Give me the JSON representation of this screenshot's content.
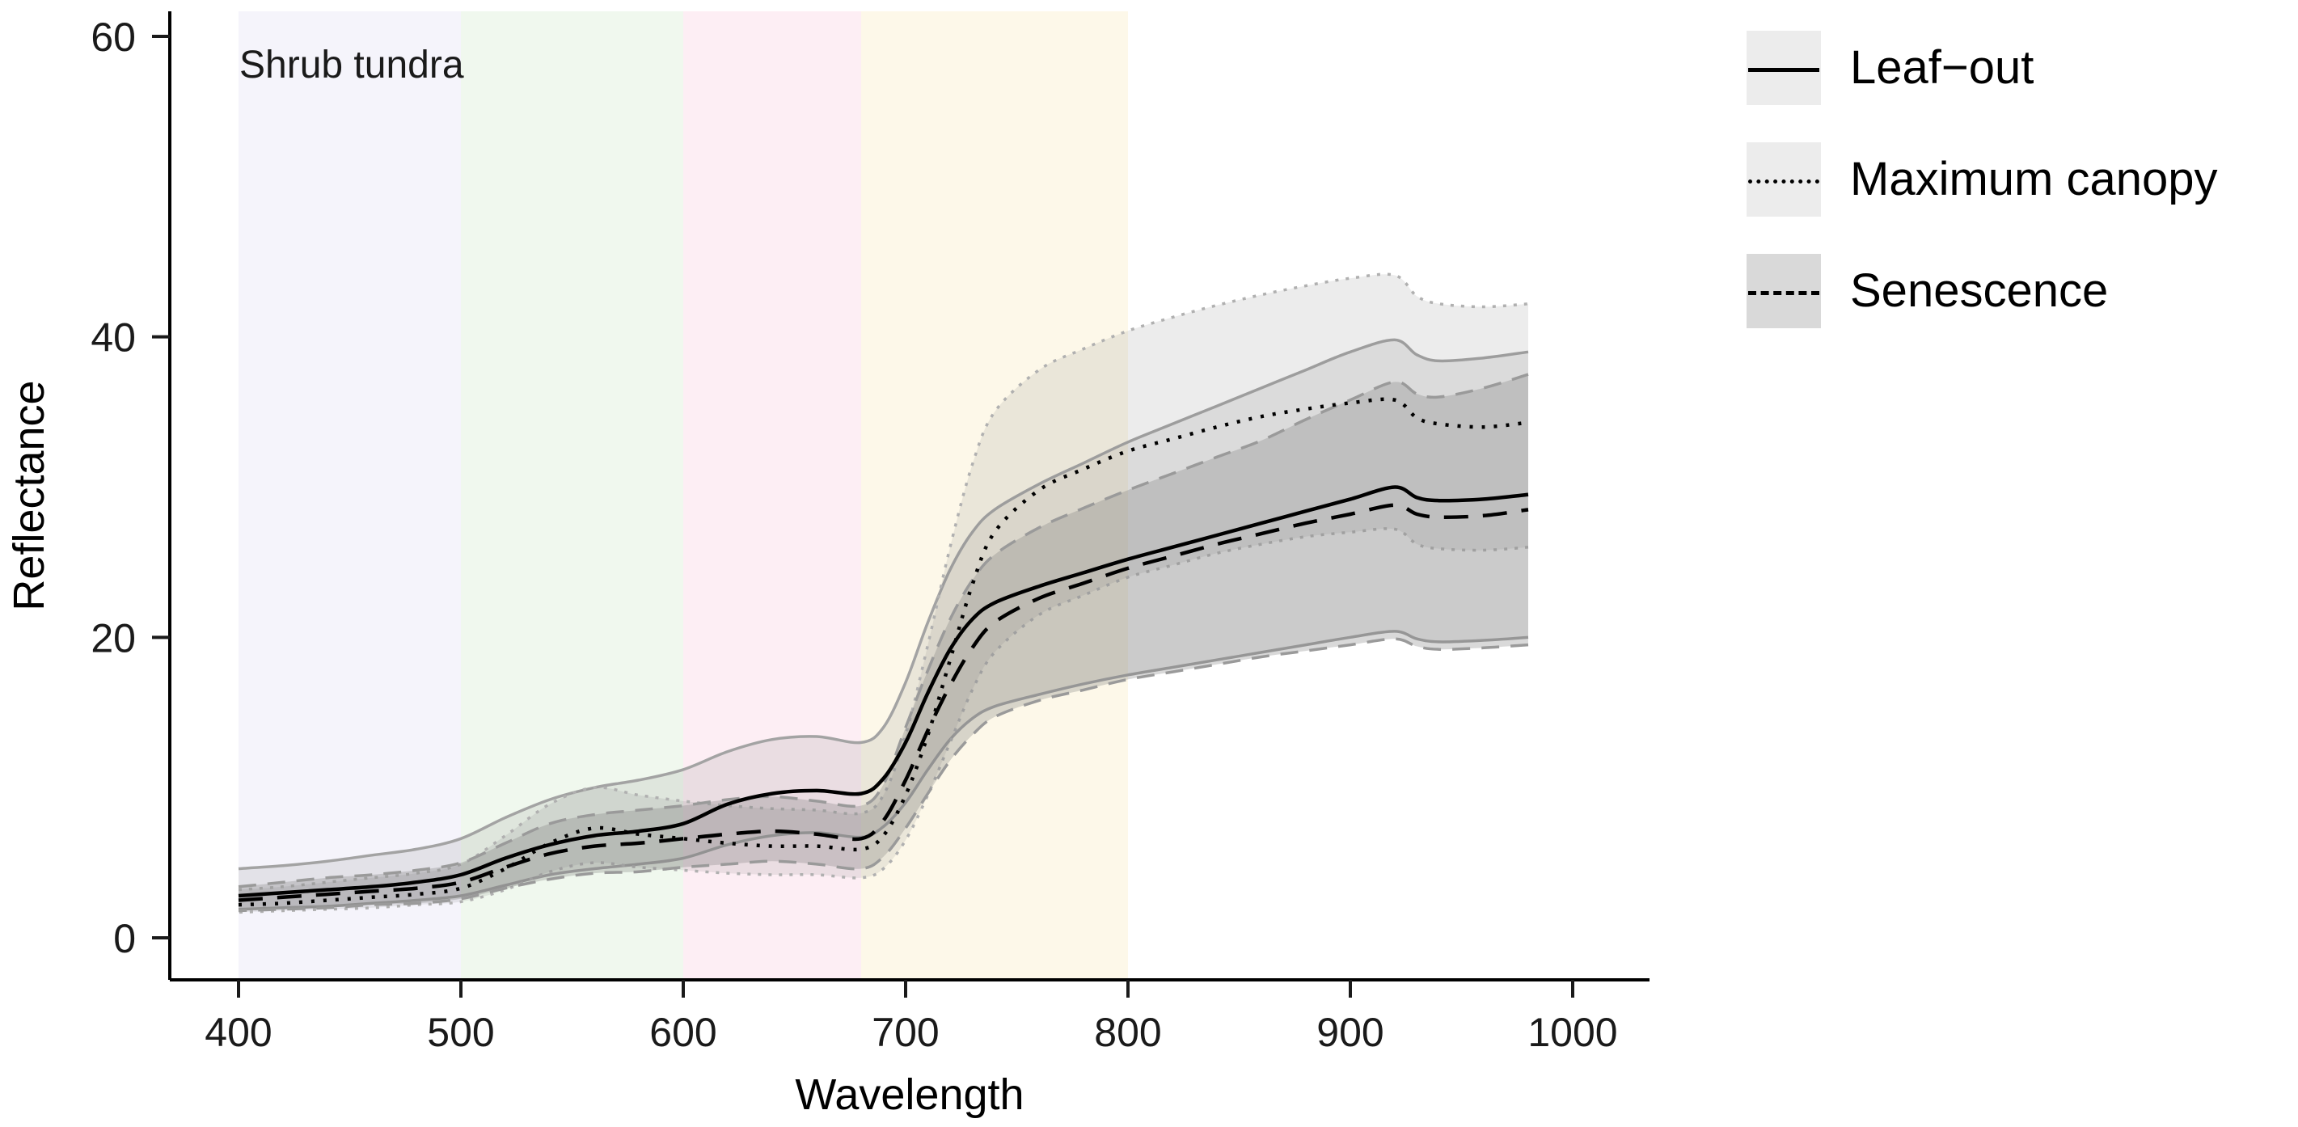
{
  "chart_data": {
    "type": "line",
    "title": "Shrub tundra",
    "xlabel": "Wavelength",
    "ylabel": "Reflectance",
    "xlim": [
      400,
      1000
    ],
    "ylim": [
      0,
      60
    ],
    "xticks": [
      400,
      500,
      600,
      700,
      800,
      900,
      1000
    ],
    "yticks": [
      0,
      20,
      40,
      60
    ],
    "grid": false,
    "legend_position": "right-top",
    "background_bands": [
      {
        "name": "blue-violet",
        "from": 400,
        "to": 500,
        "color": "#f5f4fb"
      },
      {
        "name": "green",
        "from": 500,
        "to": 600,
        "color": "#f0f8ee"
      },
      {
        "name": "red-pink",
        "from": 600,
        "to": 680,
        "color": "#fdeef4"
      },
      {
        "name": "nir-yellow",
        "from": 680,
        "to": 800,
        "color": "#fdf8e9"
      }
    ],
    "x": [
      400,
      420,
      440,
      460,
      480,
      500,
      520,
      540,
      560,
      580,
      600,
      620,
      640,
      660,
      680,
      690,
      700,
      710,
      720,
      730,
      740,
      760,
      780,
      800,
      820,
      840,
      860,
      880,
      900,
      920,
      930,
      940,
      960,
      980
    ],
    "series": [
      {
        "name": "Leaf−out",
        "line_style": "solid",
        "line_color": "#000000",
        "ribbon_fill": "rgba(127,127,127,0.15)",
        "ribbon_border": "#a3a3a3",
        "mean": [
          2.8,
          3.0,
          3.2,
          3.4,
          3.7,
          4.2,
          5.3,
          6.2,
          6.8,
          7.1,
          7.6,
          8.9,
          9.6,
          9.8,
          9.6,
          10.6,
          13.0,
          16.3,
          19.2,
          21.2,
          22.3,
          23.4,
          24.3,
          25.2,
          26.0,
          26.8,
          27.6,
          28.4,
          29.2,
          30.0,
          29.3,
          29.1,
          29.2,
          29.5
        ],
        "lower": [
          1.9,
          2.0,
          2.1,
          2.3,
          2.5,
          2.8,
          3.5,
          4.2,
          4.6,
          4.9,
          5.3,
          6.2,
          6.8,
          7.0,
          6.7,
          7.4,
          9.0,
          11.2,
          13.2,
          14.6,
          15.4,
          16.2,
          16.9,
          17.5,
          18.0,
          18.5,
          19.0,
          19.5,
          20.0,
          20.4,
          19.9,
          19.7,
          19.8,
          20.0
        ],
        "upper": [
          4.6,
          4.8,
          5.1,
          5.5,
          5.9,
          6.6,
          8.0,
          9.2,
          10.0,
          10.5,
          11.2,
          12.4,
          13.2,
          13.4,
          13.0,
          14.0,
          17.0,
          21.0,
          24.5,
          27.0,
          28.5,
          30.2,
          31.6,
          33.0,
          34.2,
          35.4,
          36.6,
          37.8,
          39.0,
          39.8,
          38.8,
          38.4,
          38.6,
          39.0
        ]
      },
      {
        "name": "Maximum canopy",
        "line_style": "dotted",
        "line_color": "#000000",
        "ribbon_fill": "rgba(127,127,127,0.15)",
        "ribbon_border": "#b0b0b0",
        "mean": [
          2.2,
          2.3,
          2.5,
          2.7,
          2.9,
          3.3,
          4.6,
          6.3,
          7.3,
          6.9,
          6.6,
          6.3,
          6.1,
          6.1,
          5.9,
          6.8,
          9.5,
          13.5,
          18.5,
          23.5,
          27.0,
          29.8,
          31.2,
          32.4,
          33.2,
          34.0,
          34.7,
          35.2,
          35.6,
          35.8,
          34.6,
          34.2,
          34.0,
          34.3
        ],
        "lower": [
          1.7,
          1.8,
          1.9,
          2.0,
          2.2,
          2.4,
          3.2,
          4.4,
          5.0,
          4.7,
          4.5,
          4.3,
          4.2,
          4.2,
          4.0,
          4.6,
          6.5,
          9.5,
          13.0,
          16.5,
          19.0,
          21.5,
          22.8,
          24.0,
          24.8,
          25.6,
          26.2,
          26.7,
          27.0,
          27.2,
          26.2,
          25.9,
          25.8,
          26.0
        ],
        "upper": [
          3.2,
          3.4,
          3.7,
          4.0,
          4.3,
          4.9,
          6.8,
          8.9,
          10.0,
          9.5,
          9.1,
          8.8,
          8.6,
          8.5,
          8.3,
          9.5,
          13.5,
          19.5,
          26.0,
          31.5,
          35.0,
          37.8,
          39.2,
          40.4,
          41.3,
          42.1,
          42.8,
          43.4,
          43.9,
          44.1,
          42.7,
          42.2,
          42.0,
          42.2
        ]
      },
      {
        "name": "Senescence",
        "line_style": "dashed",
        "line_color": "#000000",
        "ribbon_fill": "rgba(120,120,120,0.28)",
        "ribbon_border": "#9a9a9a",
        "mean": [
          2.5,
          2.7,
          2.9,
          3.1,
          3.3,
          3.7,
          4.7,
          5.6,
          6.1,
          6.3,
          6.6,
          6.9,
          7.1,
          6.9,
          6.6,
          7.8,
          10.5,
          13.8,
          16.8,
          19.3,
          21.0,
          22.6,
          23.6,
          24.6,
          25.4,
          26.2,
          26.9,
          27.6,
          28.2,
          28.8,
          28.2,
          28.0,
          28.1,
          28.5
        ],
        "lower": [
          1.8,
          1.9,
          2.0,
          2.2,
          2.3,
          2.6,
          3.3,
          3.9,
          4.3,
          4.4,
          4.7,
          4.9,
          5.1,
          4.9,
          4.6,
          5.4,
          7.3,
          9.6,
          11.8,
          13.5,
          14.7,
          15.8,
          16.5,
          17.2,
          17.7,
          18.2,
          18.7,
          19.1,
          19.5,
          19.9,
          19.4,
          19.2,
          19.3,
          19.5
        ],
        "upper": [
          3.4,
          3.7,
          4.0,
          4.2,
          4.5,
          5.0,
          6.3,
          7.6,
          8.2,
          8.5,
          8.8,
          9.2,
          9.4,
          9.1,
          8.8,
          10.2,
          14.0,
          17.8,
          21.2,
          23.8,
          25.5,
          27.3,
          28.6,
          29.8,
          30.9,
          32.0,
          33.1,
          34.5,
          35.8,
          37.0,
          36.2,
          36.0,
          36.6,
          37.5
        ]
      }
    ]
  }
}
